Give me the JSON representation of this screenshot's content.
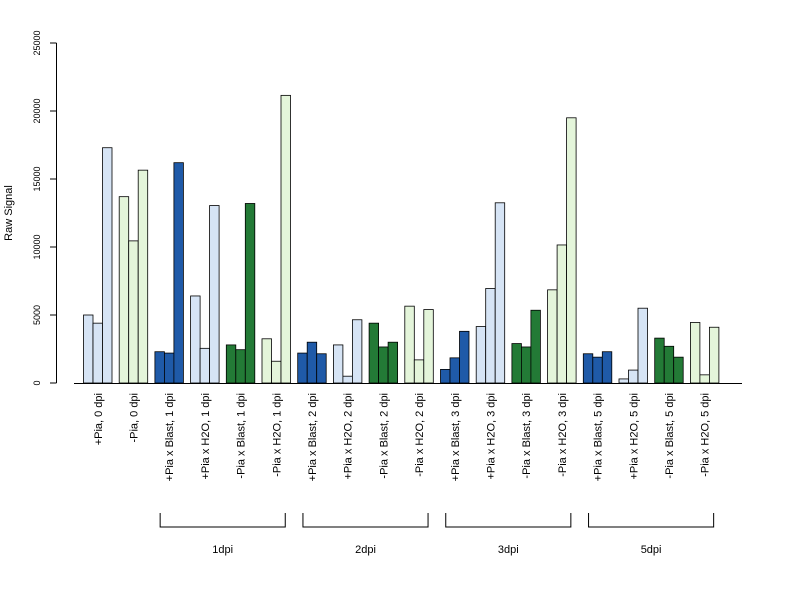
{
  "chart_data": {
    "type": "bar",
    "title": "",
    "xlabel": "",
    "ylabel": "Raw Signal",
    "ylim": [
      0,
      25000
    ],
    "yticks": [
      "0",
      "5000",
      "10000",
      "15000",
      "20000",
      "25000"
    ],
    "grid": false,
    "legend": "none",
    "categories": [
      "+Pia, 0 dpi",
      "-Pia, 0 dpi",
      "+Pia x Blast, 1 dpi",
      "+Pia x H2O, 1 dpi",
      "-Pia x Blast, 1 dpi",
      "-Pia x H2O, 1 dpi",
      "+Pia x Blast, 2 dpi",
      "+Pia x H2O, 2 dpi",
      "-Pia x Blast, 2 dpi",
      "-Pia x H2O, 2 dpi",
      "+Pia x Blast, 3 dpi",
      "+Pia x H2O, 3 dpi",
      "-Pia x Blast, 3 dpi",
      "-Pia x H2O, 3 dpi",
      "+Pia x Blast, 5 dpi",
      "+Pia x H2O, 5 dpi",
      "-Pia x Blast, 5 dpi",
      "-Pia x H2O, 5 dpi"
    ],
    "category_colors": [
      "#d6e4f5",
      "#e4f5da",
      "#1f5aa8",
      "#d6e4f5",
      "#237a36",
      "#e4f5da",
      "#1f5aa8",
      "#d6e4f5",
      "#237a36",
      "#e4f5da",
      "#1f5aa8",
      "#d6e4f5",
      "#237a36",
      "#e4f5da",
      "#1f5aa8",
      "#d6e4f5",
      "#237a36",
      "#e4f5da"
    ],
    "values": [
      [
        5000,
        4400,
        17300
      ],
      [
        13700,
        10450,
        15650
      ],
      [
        2300,
        2200,
        16200
      ],
      [
        6400,
        2550,
        13050
      ],
      [
        2800,
        2450,
        13200
      ],
      [
        3250,
        1600,
        21150
      ],
      [
        2200,
        3000,
        2150
      ],
      [
        2800,
        500,
        4650
      ],
      [
        4400,
        2650,
        3000
      ],
      [
        5650,
        1700,
        5400
      ],
      [
        1000,
        1850,
        3800
      ],
      [
        4150,
        6950,
        13250
      ],
      [
        2900,
        2650,
        5350
      ],
      [
        6850,
        10150,
        19500
      ],
      [
        2150,
        1900,
        2300
      ],
      [
        300,
        950,
        5500
      ],
      [
        3300,
        2700,
        1900
      ],
      [
        4450,
        600,
        4100
      ]
    ],
    "groups": [
      {
        "label": "1dpi",
        "from": 2,
        "to": 5
      },
      {
        "label": "2dpi",
        "from": 6,
        "to": 9
      },
      {
        "label": "3dpi",
        "from": 10,
        "to": 13
      },
      {
        "label": "5dpi",
        "from": 14,
        "to": 17
      }
    ]
  }
}
